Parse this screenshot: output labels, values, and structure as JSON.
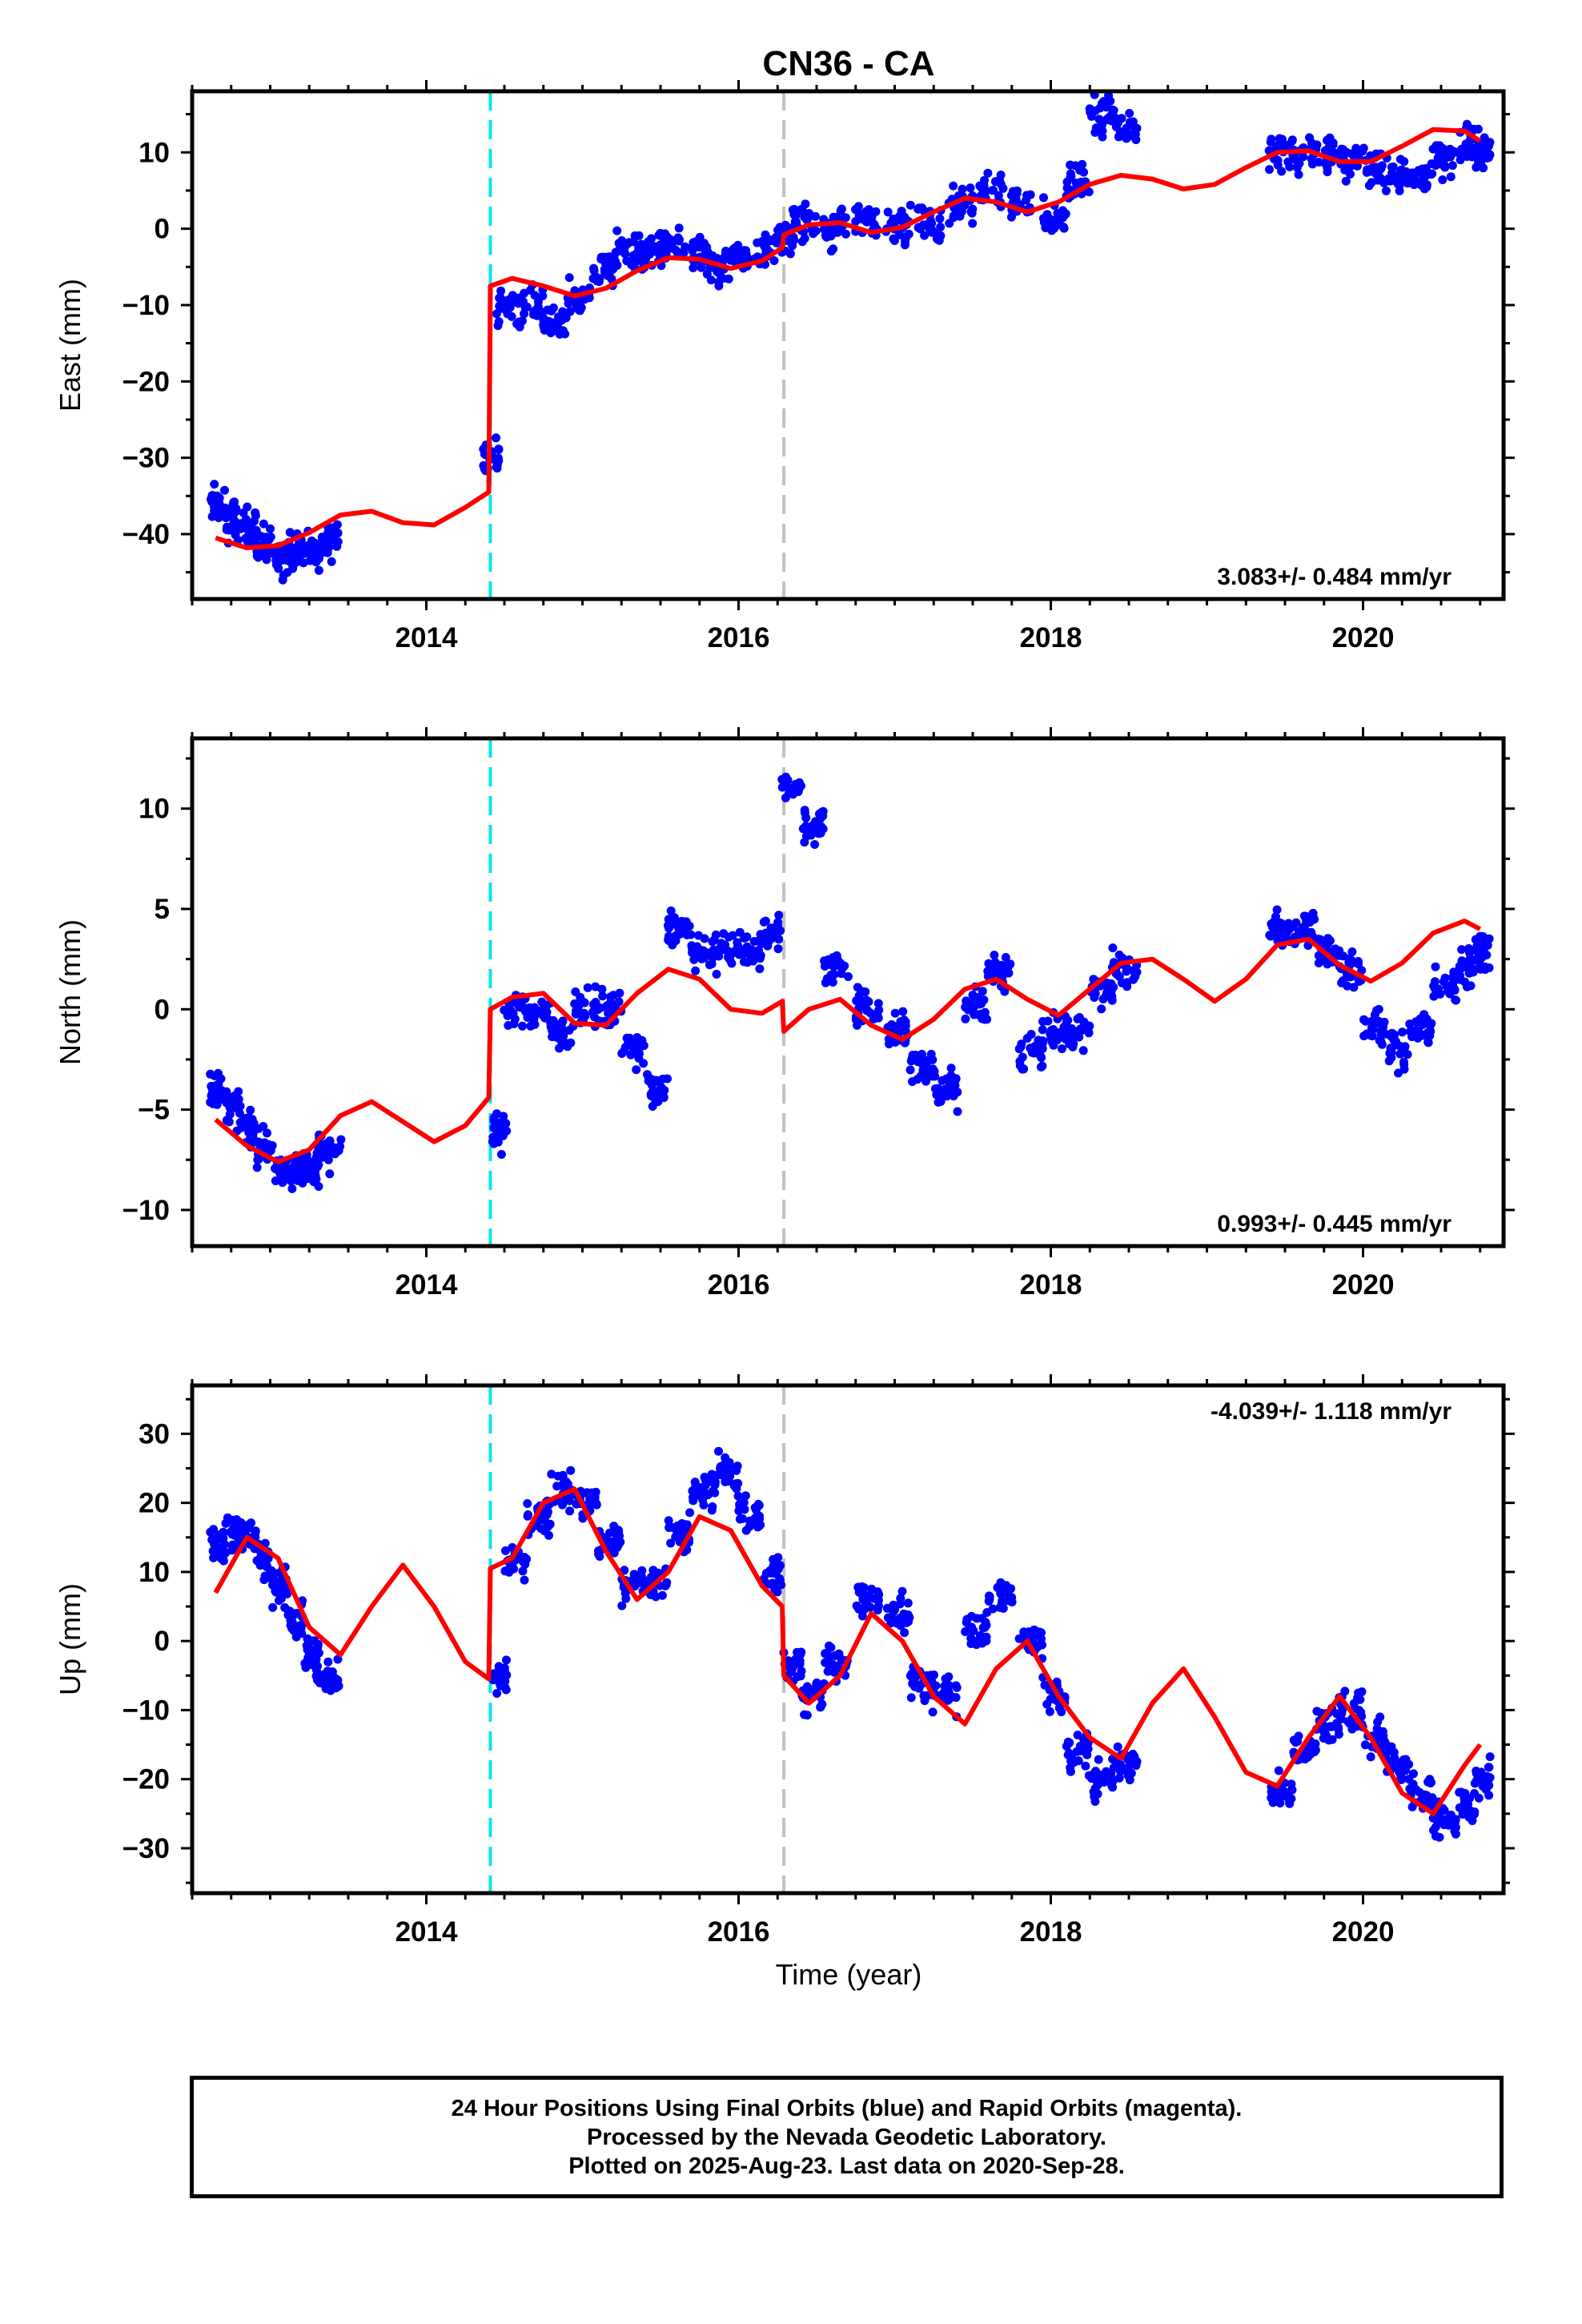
{
  "title": "CN36 - CA",
  "xlabel": "Time (year)",
  "footer": {
    "line1": "24 Hour Positions Using Final Orbits (blue) and Rapid Orbits (magenta).",
    "line2": "Processed by the Nevada Geodetic Laboratory.",
    "line3": "Plotted on 2025-Aug-23. Last data on 2020-Sep-28."
  },
  "colors": {
    "data": "#0000ff",
    "model": "#ff0000",
    "equipment_change": "#00e5e5",
    "other_event": "#c0c0c0",
    "frame": "#000000"
  },
  "chart_data": [
    {
      "type": "scatter",
      "title": "CN36 - CA",
      "ylabel": "East (mm)",
      "xlabel": "",
      "xlim": [
        2012.5,
        2020.9
      ],
      "ylim": [
        -48.5,
        18
      ],
      "xticks": [
        2014,
        2016,
        2018,
        2020
      ],
      "yticks": [
        -40,
        -30,
        -20,
        -10,
        0,
        10
      ],
      "rate_label": "3.083+/- 0.484 mm/yr",
      "rate_position": "bottom-right",
      "events": [
        {
          "x": 2014.41,
          "kind": "equipment_change"
        },
        {
          "x": 2016.29,
          "kind": "other_event"
        }
      ],
      "data_series": {
        "name": "Final Orbits",
        "x": [
          2012.65,
          2012.75,
          2012.85,
          2012.95,
          2013.05,
          2013.15,
          2013.25,
          2013.35,
          2014.4,
          2014.5,
          2014.65,
          2014.8,
          2014.95,
          2015.1,
          2015.25,
          2015.4,
          2015.55,
          2015.7,
          2015.85,
          2016.0,
          2016.15,
          2016.28,
          2016.4,
          2016.6,
          2016.8,
          2017.0,
          2017.2,
          2017.4,
          2017.6,
          2017.8,
          2018.0,
          2018.15,
          2018.3,
          2018.45,
          2019.45,
          2019.6,
          2019.75,
          2019.9,
          2020.05,
          2020.2,
          2020.35,
          2020.5,
          2020.65,
          2020.75
        ],
        "y": [
          -36,
          -38,
          -39,
          -41,
          -43,
          -42,
          -42,
          -41,
          -30,
          -10,
          -10,
          -12,
          -9,
          -5,
          -3,
          -3,
          -2,
          -3,
          -5,
          -4,
          -3,
          -1,
          1,
          0,
          1,
          0,
          1,
          3,
          5,
          3,
          1,
          6,
          15,
          13,
          10,
          10,
          10,
          9,
          8,
          7,
          7,
          9,
          11,
          10
        ]
      },
      "model_series": {
        "name": "Model",
        "x": [
          2012.65,
          2012.85,
          2013.05,
          2013.25,
          2013.45,
          2013.65,
          2013.85,
          2014.05,
          2014.25,
          2014.4,
          2014.41,
          2014.55,
          2014.75,
          2014.95,
          2015.15,
          2015.35,
          2015.55,
          2015.75,
          2015.95,
          2016.15,
          2016.28,
          2016.29,
          2016.45,
          2016.65,
          2016.85,
          2017.05,
          2017.25,
          2017.45,
          2017.65,
          2017.85,
          2018.05,
          2018.25,
          2018.45,
          2018.65,
          2018.85,
          2019.05,
          2019.25,
          2019.45,
          2019.65,
          2019.85,
          2020.05,
          2020.25,
          2020.45,
          2020.65,
          2020.75
        ],
        "y": [
          -40.5,
          -41.8,
          -41.5,
          -39.8,
          -37.5,
          -37,
          -38.5,
          -38.8,
          -36.5,
          -34.5,
          -7.5,
          -6.5,
          -7.5,
          -8.8,
          -7.8,
          -5.5,
          -3.8,
          -4,
          -5.2,
          -4.2,
          -2.5,
          -0.8,
          0.5,
          0.8,
          -0.5,
          0.2,
          2.2,
          4,
          3.5,
          2.2,
          3.5,
          5.8,
          7,
          6.5,
          5.2,
          5.8,
          8,
          10,
          10.2,
          8.8,
          8.8,
          10.8,
          13,
          12.8,
          11.5
        ]
      }
    },
    {
      "type": "scatter",
      "ylabel": "North (mm)",
      "xlabel": "",
      "xlim": [
        2012.5,
        2020.9
      ],
      "ylim": [
        -11.8,
        13.5
      ],
      "xticks": [
        2014,
        2016,
        2018,
        2020
      ],
      "yticks": [
        -10,
        -5,
        0,
        5,
        10
      ],
      "rate_label": "0.993+/- 0.445 mm/yr",
      "rate_position": "bottom-right",
      "events": [
        {
          "x": 2014.41,
          "kind": "equipment_change"
        },
        {
          "x": 2016.29,
          "kind": "other_event"
        }
      ],
      "data_series": {
        "name": "Final Orbits",
        "x": [
          2012.65,
          2012.75,
          2012.85,
          2012.95,
          2013.05,
          2013.15,
          2013.25,
          2013.35,
          2014.45,
          2014.55,
          2014.7,
          2014.85,
          2015.0,
          2015.15,
          2015.3,
          2015.45,
          2015.6,
          2015.75,
          2015.9,
          2016.05,
          2016.2,
          2016.32,
          2016.45,
          2016.6,
          2016.8,
          2017.0,
          2017.15,
          2017.3,
          2017.5,
          2017.65,
          2017.85,
          2018.0,
          2018.15,
          2018.3,
          2018.45,
          2019.45,
          2019.6,
          2019.75,
          2019.9,
          2020.05,
          2020.2,
          2020.35,
          2020.5,
          2020.65,
          2020.75
        ],
        "y": [
          -4,
          -5,
          -6,
          -7,
          -8,
          -8,
          -8,
          -7,
          -6,
          0,
          0,
          -1,
          0,
          0,
          -2,
          -4,
          4,
          3,
          3,
          3,
          4,
          11,
          9,
          2,
          0,
          -1,
          -3,
          -4,
          0,
          2,
          -2,
          -1,
          -1,
          1,
          2,
          4,
          4,
          3,
          2,
          -1,
          -2,
          -1,
          1,
          2,
          3
        ]
      },
      "model_series": {
        "name": "Model",
        "x": [
          2012.65,
          2012.85,
          2013.05,
          2013.25,
          2013.45,
          2013.65,
          2013.85,
          2014.05,
          2014.25,
          2014.4,
          2014.41,
          2014.55,
          2014.75,
          2014.95,
          2015.15,
          2015.35,
          2015.55,
          2015.75,
          2015.95,
          2016.15,
          2016.28,
          2016.29,
          2016.45,
          2016.65,
          2016.85,
          2017.05,
          2017.25,
          2017.45,
          2017.65,
          2017.85,
          2018.05,
          2018.25,
          2018.45,
          2018.65,
          2018.85,
          2019.05,
          2019.25,
          2019.45,
          2019.65,
          2019.85,
          2020.05,
          2020.25,
          2020.45,
          2020.65,
          2020.75
        ],
        "y": [
          -5.5,
          -6.8,
          -7.6,
          -7,
          -5.3,
          -4.6,
          -5.6,
          -6.6,
          -5.8,
          -4.4,
          0,
          0.6,
          0.8,
          -0.7,
          -0.8,
          0.8,
          2,
          1.5,
          0,
          -0.2,
          0.4,
          -1.1,
          0,
          0.5,
          -0.8,
          -1.5,
          -0.5,
          1,
          1.5,
          0.5,
          -0.3,
          1,
          2.3,
          2.5,
          1.5,
          0.4,
          1.5,
          3.2,
          3.5,
          2.2,
          1.4,
          2.3,
          3.8,
          4.4,
          4
        ]
      }
    },
    {
      "type": "scatter",
      "ylabel": "Up (mm)",
      "xlabel": "Time (year)",
      "xlim": [
        2012.5,
        2020.9
      ],
      "ylim": [
        -36.5,
        37
      ],
      "xticks": [
        2014,
        2016,
        2018,
        2020
      ],
      "yticks": [
        -30,
        -20,
        -10,
        0,
        10,
        20,
        30
      ],
      "rate_label": "-4.039+/- 1.118 mm/yr",
      "rate_position": "top-right",
      "events": [
        {
          "x": 2014.41,
          "kind": "equipment_change"
        },
        {
          "x": 2016.29,
          "kind": "other_event"
        }
      ],
      "data_series": {
        "name": "Final Orbits",
        "x": [
          2012.65,
          2012.75,
          2012.85,
          2012.95,
          2013.05,
          2013.15,
          2013.25,
          2013.35,
          2014.45,
          2014.55,
          2014.7,
          2014.85,
          2015.0,
          2015.15,
          2015.3,
          2015.45,
          2015.6,
          2015.75,
          2015.9,
          2016.05,
          2016.2,
          2016.32,
          2016.45,
          2016.6,
          2016.8,
          2017.0,
          2017.15,
          2017.3,
          2017.5,
          2017.65,
          2017.85,
          2018.0,
          2018.15,
          2018.3,
          2018.45,
          2019.45,
          2019.6,
          2019.75,
          2019.9,
          2020.05,
          2020.2,
          2020.35,
          2020.5,
          2020.65,
          2020.75
        ],
        "y": [
          14,
          16,
          15,
          12,
          8,
          3,
          -2,
          -5,
          -5,
          12,
          18,
          22,
          20,
          14,
          8,
          8,
          16,
          22,
          24,
          18,
          10,
          -3,
          -8,
          -3,
          6,
          4,
          -6,
          -8,
          2,
          6,
          0,
          -8,
          -16,
          -20,
          -18,
          -22,
          -16,
          -12,
          -10,
          -14,
          -18,
          -22,
          -26,
          -24,
          -20
        ]
      },
      "model_series": {
        "name": "Model",
        "x": [
          2012.65,
          2012.85,
          2013.05,
          2013.25,
          2013.45,
          2013.65,
          2013.85,
          2014.05,
          2014.25,
          2014.4,
          2014.41,
          2014.55,
          2014.75,
          2014.95,
          2015.15,
          2015.35,
          2015.55,
          2015.75,
          2015.95,
          2016.15,
          2016.28,
          2016.29,
          2016.45,
          2016.65,
          2016.85,
          2017.05,
          2017.25,
          2017.45,
          2017.65,
          2017.85,
          2018.05,
          2018.25,
          2018.45,
          2018.65,
          2018.85,
          2019.05,
          2019.25,
          2019.45,
          2019.65,
          2019.85,
          2020.05,
          2020.25,
          2020.45,
          2020.65,
          2020.75
        ],
        "y": [
          7,
          15,
          12,
          2,
          -2,
          5,
          11,
          5,
          -3,
          -5.5,
          10.5,
          12,
          20,
          22,
          13,
          6,
          10,
          18,
          16,
          8,
          5,
          -5,
          -9,
          -5,
          4,
          0,
          -8,
          -12,
          -4,
          0,
          -8,
          -14,
          -17,
          -9,
          -4,
          -11,
          -19,
          -21,
          -14,
          -8,
          -14,
          -22,
          -25,
          -18,
          -15
        ]
      }
    }
  ]
}
